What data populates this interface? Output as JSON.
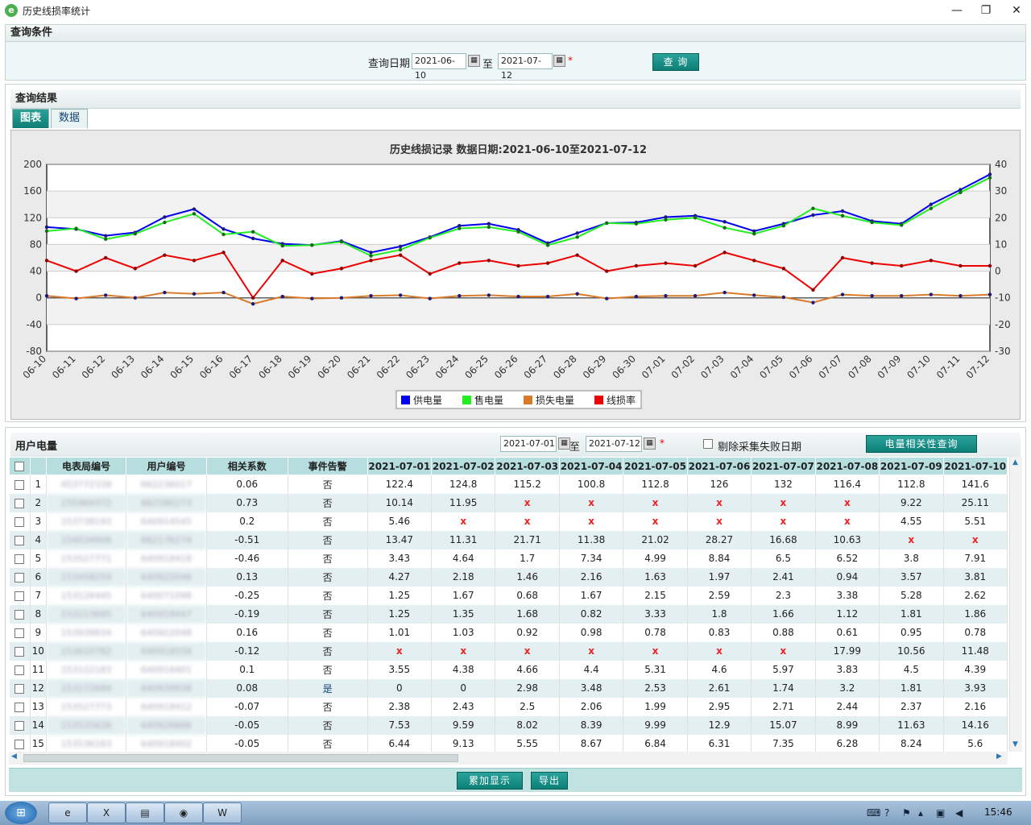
{
  "window": {
    "title": "历史线损率统计",
    "min": "—",
    "max": "❐",
    "close": "✕"
  },
  "query": {
    "section_title": "查询条件",
    "date_label": "查询日期",
    "start": "2021-06-10",
    "to": "至",
    "end": "2021-07-12",
    "required": "*",
    "button": "查 询"
  },
  "result": {
    "section_title": "查询结果",
    "tabs": [
      "图表",
      "数据"
    ]
  },
  "chart_data": {
    "type": "line",
    "title": "历史线损记录  数据日期:2021-06-10至2021-07-12",
    "categories": [
      "06-10",
      "06-11",
      "06-12",
      "06-13",
      "06-14",
      "06-15",
      "06-16",
      "06-17",
      "06-18",
      "06-19",
      "06-20",
      "06-21",
      "06-22",
      "06-23",
      "06-24",
      "06-25",
      "06-26",
      "06-27",
      "06-28",
      "06-29",
      "06-30",
      "07-01",
      "07-02",
      "07-03",
      "07-04",
      "07-05",
      "07-06",
      "07-07",
      "07-08",
      "07-09",
      "07-10",
      "07-11",
      "07-12"
    ],
    "ylim_left": [
      -80,
      200
    ],
    "yticks_left": [
      -80,
      -40,
      0,
      40,
      80,
      120,
      160,
      200
    ],
    "ylim_right": [
      -30,
      40
    ],
    "yticks_right": [
      -30,
      -20,
      -10,
      0,
      10,
      20,
      30,
      40
    ],
    "series": [
      {
        "name": "供电量",
        "color": "#0000ee",
        "axis": "left",
        "values": [
          106,
          103,
          93,
          98,
          121,
          133,
          103,
          89,
          81,
          79,
          85,
          68,
          77,
          91,
          108,
          111,
          102,
          82,
          97,
          112,
          113,
          121,
          123,
          114,
          100,
          111,
          124,
          130,
          115,
          111,
          140,
          162,
          185
        ]
      },
      {
        "name": "售电量",
        "color": "#22ee22",
        "axis": "left",
        "values": [
          100,
          104,
          88,
          96,
          113,
          126,
          95,
          99,
          78,
          79,
          84,
          63,
          72,
          90,
          104,
          106,
          99,
          79,
          91,
          112,
          111,
          117,
          120,
          105,
          96,
          108,
          134,
          123,
          113,
          109,
          134,
          158,
          180
        ]
      },
      {
        "name": "损失电量",
        "color": "#d97a2a",
        "axis": "left",
        "values": [
          3,
          -1,
          4,
          0,
          8,
          6,
          8,
          -9,
          2,
          -1,
          0,
          3,
          4,
          -1,
          3,
          4,
          2,
          2,
          6,
          -1,
          2,
          3,
          3,
          8,
          4,
          1,
          -7,
          5,
          3,
          3,
          5,
          3,
          5
        ]
      },
      {
        "name": "线损率",
        "color": "#ee0000",
        "axis": "right",
        "values": [
          4,
          0,
          5,
          1,
          6,
          4,
          7,
          -10,
          4,
          -1,
          1,
          4,
          6,
          -1,
          3,
          4,
          2,
          3,
          6,
          0,
          2,
          3,
          2,
          7,
          4,
          1,
          -7,
          5,
          3,
          2,
          4,
          2,
          2
        ]
      }
    ],
    "legend_placement": "bottom-center",
    "grid": true
  },
  "usage": {
    "section_title": "用户电量",
    "start": "2021-07-01",
    "to": "至",
    "end": "2021-07-12",
    "required": "*",
    "exclude_label": "剔除采集失败日期",
    "corr_button": "电量相关性查询",
    "columns": [
      "电表局编号",
      "用户编号",
      "相关系数",
      "事件告警",
      "2021-07-01",
      "2021-07-02",
      "2021-07-03",
      "2021-07-04",
      "2021-07-05",
      "2021-07-06",
      "2021-07-07",
      "2021-07-08",
      "2021-07-09",
      "2021-07-10"
    ],
    "rows": [
      {
        "n": "1",
        "meter": "453772339",
        "user": "662236017",
        "r": "0.06",
        "alarm": "否",
        "v": [
          "122.4",
          "124.8",
          "115.2",
          "100.8",
          "112.8",
          "126",
          "132",
          "116.4",
          "112.8",
          "141.6"
        ]
      },
      {
        "n": "2",
        "meter": "155969372",
        "user": "662580273",
        "r": "0.73",
        "alarm": "否",
        "v": [
          "10.14",
          "11.95",
          "x",
          "x",
          "x",
          "x",
          "x",
          "x",
          "9.22",
          "25.11"
        ]
      },
      {
        "n": "3",
        "meter": "153738193",
        "user": "640914545",
        "r": "0.2",
        "alarm": "否",
        "v": [
          "5.46",
          "x",
          "x",
          "x",
          "x",
          "x",
          "x",
          "x",
          "4.55",
          "5.51"
        ]
      },
      {
        "n": "4",
        "meter": "154034906",
        "user": "662176274",
        "r": "-0.51",
        "alarm": "否",
        "v": [
          "13.47",
          "11.31",
          "21.71",
          "11.38",
          "21.02",
          "28.27",
          "16.68",
          "10.63",
          "x",
          "x"
        ]
      },
      {
        "n": "5",
        "meter": "153527771",
        "user": "640918418",
        "r": "-0.46",
        "alarm": "否",
        "v": [
          "3.43",
          "4.64",
          "1.7",
          "7.34",
          "4.99",
          "8.84",
          "6.5",
          "6.52",
          "3.8",
          "7.91"
        ]
      },
      {
        "n": "6",
        "meter": "153458259",
        "user": "640922046",
        "r": "0.13",
        "alarm": "否",
        "v": [
          "4.27",
          "2.18",
          "1.46",
          "2.16",
          "1.63",
          "1.97",
          "2.41",
          "0.94",
          "3.57",
          "3.81"
        ]
      },
      {
        "n": "7",
        "meter": "153126445",
        "user": "640071098",
        "r": "-0.25",
        "alarm": "否",
        "v": [
          "1.25",
          "1.67",
          "0.68",
          "1.67",
          "2.15",
          "2.59",
          "2.3",
          "3.38",
          "5.28",
          "2.62"
        ]
      },
      {
        "n": "8",
        "meter": "153213685",
        "user": "640919447",
        "r": "-0.19",
        "alarm": "否",
        "v": [
          "1.25",
          "1.35",
          "1.68",
          "0.82",
          "3.33",
          "1.8",
          "1.66",
          "1.12",
          "1.81",
          "1.86"
        ]
      },
      {
        "n": "9",
        "meter": "153939834",
        "user": "640922048",
        "r": "0.16",
        "alarm": "否",
        "v": [
          "1.01",
          "1.03",
          "0.92",
          "0.98",
          "0.78",
          "0.83",
          "0.88",
          "0.61",
          "0.95",
          "0.78"
        ]
      },
      {
        "n": "10",
        "meter": "153610762",
        "user": "640918558",
        "r": "-0.12",
        "alarm": "否",
        "v": [
          "x",
          "x",
          "x",
          "x",
          "x",
          "x",
          "x",
          "17.99",
          "10.56",
          "11.48"
        ]
      },
      {
        "n": "11",
        "meter": "153122183",
        "user": "640918401",
        "r": "0.1",
        "alarm": "否",
        "v": [
          "3.55",
          "4.38",
          "4.66",
          "4.4",
          "5.31",
          "4.6",
          "5.97",
          "3.83",
          "4.5",
          "4.39"
        ]
      },
      {
        "n": "12",
        "meter": "153272684",
        "user": "640939938",
        "r": "0.08",
        "alarm": "是",
        "v": [
          "0",
          "0",
          "2.98",
          "3.48",
          "2.53",
          "2.61",
          "1.74",
          "3.2",
          "1.81",
          "3.93"
        ]
      },
      {
        "n": "13",
        "meter": "153527773",
        "user": "640918412",
        "r": "-0.07",
        "alarm": "否",
        "v": [
          "2.38",
          "2.43",
          "2.5",
          "2.06",
          "1.99",
          "2.95",
          "2.71",
          "2.44",
          "2.37",
          "2.16"
        ]
      },
      {
        "n": "14",
        "meter": "153535626",
        "user": "640926666",
        "r": "-0.05",
        "alarm": "否",
        "v": [
          "7.53",
          "9.59",
          "8.02",
          "8.39",
          "9.99",
          "12.9",
          "15.07",
          "8.99",
          "11.63",
          "14.16"
        ]
      },
      {
        "n": "15",
        "meter": "153536183",
        "user": "640918402",
        "r": "-0.05",
        "alarm": "否",
        "v": [
          "6.44",
          "9.13",
          "5.55",
          "8.67",
          "6.84",
          "6.31",
          "7.35",
          "6.28",
          "8.24",
          "5.6"
        ]
      }
    ],
    "buttons": {
      "accumulate": "累加显示",
      "export": "导出"
    }
  },
  "taskbar": {
    "apps": [
      "ie-icon",
      "excel-icon",
      "folder-icon",
      "chrome-icon",
      "word-icon"
    ],
    "time": "15:46"
  },
  "colors": {
    "accent": "#118a82",
    "header_teal": "#b6dede"
  }
}
